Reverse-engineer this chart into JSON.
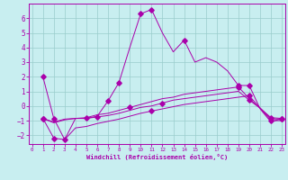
{
  "xlabel": "Windchill (Refroidissement éolien,°C)",
  "bg_color": "#c8eef0",
  "line_color": "#aa00aa",
  "grid_color": "#99cccc",
  "xlim": [
    -0.3,
    23.3
  ],
  "ylim": [
    -2.6,
    7.0
  ],
  "yticks": [
    -2,
    -1,
    0,
    1,
    2,
    3,
    4,
    5,
    6
  ],
  "xticks": [
    0,
    1,
    2,
    3,
    4,
    5,
    6,
    7,
    8,
    9,
    10,
    11,
    12,
    13,
    14,
    15,
    16,
    17,
    18,
    19,
    20,
    21,
    22,
    23
  ],
  "lines": [
    {
      "x": [
        1,
        2,
        3,
        4,
        5,
        6,
        7,
        8,
        9,
        10,
        11,
        12,
        13,
        14,
        15,
        16,
        17,
        18,
        19,
        20,
        21,
        22,
        23
      ],
      "y": [
        2.0,
        -0.85,
        -2.3,
        -0.85,
        -0.85,
        -0.7,
        0.35,
        1.6,
        4.0,
        6.3,
        6.6,
        5.0,
        3.7,
        4.5,
        3.0,
        3.3,
        3.0,
        2.4,
        1.4,
        1.4,
        -0.2,
        -1.1,
        -0.85
      ],
      "markers_x": [
        1,
        2,
        7,
        8,
        10,
        11,
        14,
        19,
        20,
        23
      ],
      "markers_y": [
        2.0,
        -0.85,
        0.35,
        1.6,
        6.3,
        6.6,
        4.5,
        1.4,
        1.4,
        -0.85
      ]
    },
    {
      "x": [
        1,
        2,
        3,
        4,
        5,
        6,
        7,
        8,
        9,
        10,
        11,
        12,
        13,
        14,
        15,
        16,
        17,
        18,
        19,
        20,
        21,
        22,
        23
      ],
      "y": [
        -0.85,
        -1.1,
        -0.9,
        -0.85,
        -0.8,
        -0.6,
        -0.5,
        -0.3,
        -0.1,
        0.1,
        0.3,
        0.5,
        0.6,
        0.8,
        0.9,
        1.0,
        1.1,
        1.2,
        1.3,
        0.5,
        -0.15,
        -0.8,
        -0.85
      ],
      "markers_x": [
        1,
        5,
        9,
        19,
        22
      ],
      "markers_y": [
        -0.85,
        -0.8,
        -0.1,
        1.3,
        -0.8
      ]
    },
    {
      "x": [
        1,
        2,
        3,
        4,
        5,
        6,
        7,
        8,
        9,
        10,
        11,
        12,
        13,
        14,
        15,
        16,
        17,
        18,
        19,
        20,
        21,
        22,
        23
      ],
      "y": [
        -0.85,
        -1.15,
        -0.95,
        -0.85,
        -0.85,
        -0.75,
        -0.65,
        -0.5,
        -0.3,
        -0.1,
        0.0,
        0.2,
        0.4,
        0.5,
        0.6,
        0.7,
        0.8,
        0.9,
        1.0,
        0.4,
        -0.15,
        -0.88,
        -0.9
      ],
      "markers_x": [
        1,
        6,
        12,
        20,
        23
      ],
      "markers_y": [
        -0.85,
        -0.75,
        0.2,
        0.4,
        -0.9
      ]
    },
    {
      "x": [
        1,
        2,
        3,
        4,
        5,
        6,
        7,
        8,
        9,
        10,
        11,
        12,
        13,
        14,
        15,
        16,
        17,
        18,
        19,
        20,
        21,
        22,
        23
      ],
      "y": [
        -0.85,
        -2.2,
        -2.3,
        -1.5,
        -1.4,
        -1.2,
        -1.05,
        -0.9,
        -0.7,
        -0.5,
        -0.35,
        -0.2,
        -0.05,
        0.1,
        0.2,
        0.3,
        0.4,
        0.5,
        0.6,
        0.7,
        -0.15,
        -1.0,
        -1.0
      ],
      "markers_x": [
        2,
        3,
        11,
        20,
        22
      ],
      "markers_y": [
        -2.2,
        -2.3,
        -0.35,
        0.7,
        -1.0
      ]
    }
  ]
}
